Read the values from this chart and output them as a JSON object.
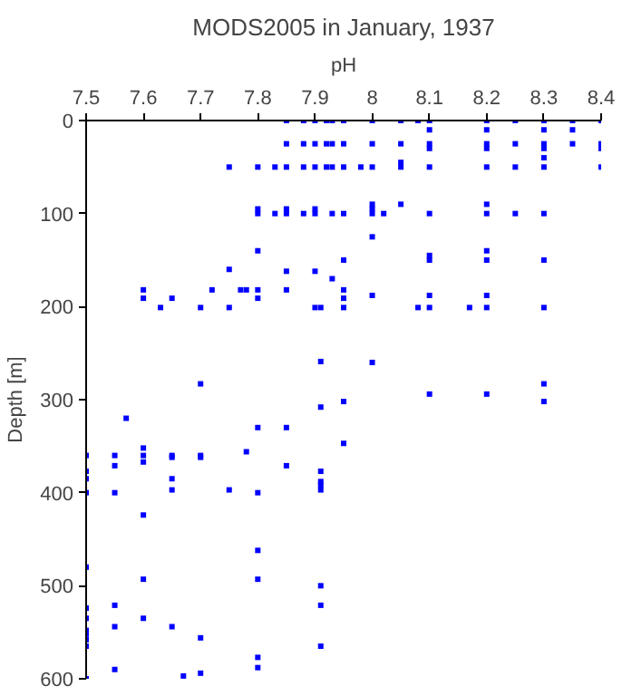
{
  "chart_data": {
    "type": "scatter",
    "title": "MODS2005 in January, 1937",
    "xlabel": "pH",
    "ylabel": "Depth [m]",
    "xlim": [
      7.5,
      8.4
    ],
    "ylim": [
      600,
      0
    ],
    "xticks": [
      7.5,
      7.6,
      7.7,
      7.8,
      7.9,
      8,
      8.1,
      8.2,
      8.3,
      8.4
    ],
    "yticks": [
      0,
      100,
      200,
      300,
      400,
      500,
      600
    ],
    "grid": false,
    "marker": "square",
    "series": [
      {
        "color": "#0000ff",
        "x": [
          7.85,
          7.88,
          7.9,
          7.92,
          7.93,
          7.95,
          8.0,
          8.05,
          8.08,
          8.1,
          8.2,
          8.25,
          8.3,
          8.35,
          8.4,
          8.1,
          8.2,
          8.3,
          8.35,
          7.85,
          7.88,
          7.9,
          7.92,
          7.93,
          7.95,
          8.0,
          8.05,
          8.1,
          8.2,
          8.25,
          8.3,
          8.35,
          8.4,
          8.4,
          8.1,
          8.3,
          8.2,
          8.3,
          8.05,
          7.75,
          7.8,
          7.83,
          7.85,
          7.88,
          7.9,
          7.92,
          7.93,
          7.95,
          7.98,
          8.0,
          8.05,
          8.1,
          8.2,
          8.25,
          8.3,
          8.4,
          8.0,
          8.05,
          8.2,
          7.8,
          7.83,
          7.85,
          7.88,
          7.9,
          7.93,
          7.95,
          8.0,
          8.02,
          8.1,
          8.2,
          8.25,
          8.3,
          7.8,
          7.85,
          7.9,
          8.0,
          8.0,
          7.8,
          8.1,
          8.2,
          8.1,
          8.2,
          8.3,
          7.95,
          7.75,
          7.85,
          7.9,
          7.93,
          7.6,
          7.72,
          7.77,
          7.78,
          7.8,
          7.85,
          7.95,
          7.6,
          7.65,
          7.8,
          7.95,
          8.0,
          8.1,
          8.2,
          7.63,
          7.7,
          7.75,
          7.9,
          7.91,
          7.95,
          8.08,
          8.1,
          8.17,
          8.2,
          8.3,
          7.91,
          8.0,
          7.7,
          8.3,
          8.1,
          8.2,
          7.95,
          8.3,
          7.91,
          7.57,
          7.8,
          7.85,
          7.95,
          7.6,
          7.78,
          7.5,
          7.55,
          7.6,
          7.65,
          7.7,
          7.65,
          7.7,
          7.6,
          7.55,
          7.85,
          7.5,
          7.91,
          7.5,
          7.65,
          7.91,
          7.91,
          7.65,
          7.75,
          7.91,
          7.5,
          7.55,
          7.8,
          7.6,
          7.8,
          7.5,
          7.6,
          7.8,
          7.91,
          7.55,
          7.91,
          7.5,
          7.5,
          7.6,
          7.55,
          7.65,
          7.5,
          7.5,
          7.7,
          7.5,
          7.91,
          7.5,
          7.8,
          7.8,
          7.55,
          7.7,
          7.67,
          7.5
        ],
        "values": [
          0,
          0,
          0,
          0,
          0,
          0,
          0,
          0,
          0,
          0,
          0,
          0,
          0,
          0,
          0,
          10,
          10,
          10,
          10,
          25,
          25,
          25,
          25,
          25,
          25,
          25,
          25,
          25,
          25,
          25,
          25,
          25,
          25,
          30,
          30,
          30,
          30,
          40,
          45,
          50,
          50,
          50,
          50,
          50,
          50,
          50,
          50,
          50,
          50,
          50,
          50,
          50,
          50,
          50,
          50,
          50,
          90,
          90,
          90,
          100,
          100,
          100,
          100,
          100,
          100,
          100,
          100,
          100,
          100,
          100,
          100,
          100,
          95,
          95,
          95,
          95,
          125,
          140,
          145,
          140,
          150,
          150,
          150,
          150,
          160,
          162,
          162,
          170,
          182,
          182,
          182,
          182,
          182,
          182,
          182,
          191,
          191,
          191,
          191,
          188,
          188,
          188,
          201,
          201,
          201,
          201,
          201,
          201,
          201,
          201,
          201,
          201,
          201,
          259,
          260,
          283,
          283,
          294,
          294,
          302,
          302,
          308,
          320,
          330,
          330,
          347,
          352,
          356,
          360,
          360,
          360,
          360,
          360,
          362,
          362,
          367,
          371,
          371,
          377,
          377,
          385,
          385,
          388,
          392,
          397,
          397,
          397,
          400,
          400,
          400,
          424,
          462,
          480,
          493,
          493,
          500,
          521,
          521,
          524,
          535,
          535,
          544,
          544,
          548,
          552,
          556,
          558,
          565,
          565,
          577,
          588,
          590,
          594,
          597,
          600
        ]
      }
    ]
  }
}
